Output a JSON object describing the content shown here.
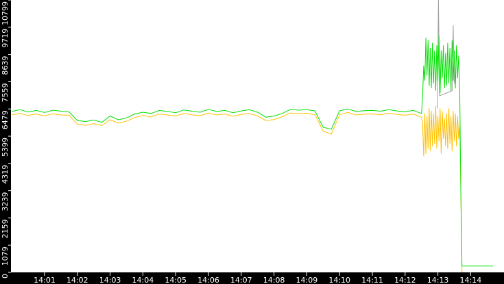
{
  "chart_data": {
    "type": "line",
    "title": "",
    "xlabel": "",
    "ylabel": "",
    "ylim": [
      0,
      10799
    ],
    "xlim": [
      "14:00:00",
      "14:14:41"
    ],
    "grid": false,
    "legend": "none",
    "y_ticks": [
      "0",
      "1079",
      "2159",
      "3239",
      "4319",
      "5399",
      "6479",
      "7559",
      "8639",
      "9719",
      "10799"
    ],
    "x_ticks": [
      "14:01",
      "14:02",
      "14:03",
      "14:04",
      "14:05",
      "14:06",
      "14:07",
      "14:08",
      "14:09",
      "14:10",
      "14:11",
      "14:12",
      "14:13",
      "14:14"
    ],
    "colors": {
      "background": "#ffffff",
      "axis_band": "#000000",
      "axis_text": "#ffffff"
    },
    "series": [
      {
        "color": "#00e000",
        "baseline_interval_s": 15,
        "baseline_start": "14:00:00",
        "baseline_values": [
          6380,
          6450,
          6360,
          6420,
          6340,
          6430,
          6390,
          6360,
          6020,
          5980,
          6040,
          5950,
          6200,
          6050,
          6120,
          6280,
          6350,
          6300,
          6420,
          6380,
          6330,
          6440,
          6390,
          6350,
          6460,
          6380,
          6420,
          6330,
          6400,
          6450,
          6350,
          6150,
          6200,
          6300,
          6460,
          6430,
          6450,
          6400,
          5750,
          5680,
          6400,
          6480,
          6380,
          6410,
          6420,
          6390,
          6450,
          6400,
          6370,
          6420,
          6300
        ],
        "burst_interval_s": 2,
        "burst_start": "14:12:32",
        "burst_values": [
          7000,
          8200,
          7600,
          9300,
          7800,
          9200,
          7400,
          8900,
          7300,
          9100,
          7500,
          8800,
          7200,
          9000,
          7600,
          9400,
          7100,
          8800,
          7700,
          9000,
          7300,
          8700,
          7400,
          9100,
          7500,
          8900,
          7200,
          9200,
          7600,
          8800,
          7300,
          9000,
          7700,
          8600,
          7000
        ],
        "tail": [
          [
            "14:13:42",
            3100
          ],
          [
            "14:13:44",
            250
          ],
          [
            "14:14:41",
            250
          ]
        ]
      },
      {
        "color": "#ffc000",
        "baseline_interval_s": 15,
        "baseline_start": "14:00:00",
        "baseline_values": [
          6250,
          6300,
          6220,
          6280,
          6200,
          6290,
          6240,
          6230,
          5880,
          5830,
          5900,
          5820,
          6050,
          5920,
          5990,
          6140,
          6220,
          6160,
          6280,
          6240,
          6200,
          6300,
          6250,
          6210,
          6320,
          6240,
          6280,
          6190,
          6260,
          6300,
          6200,
          6020,
          6060,
          6170,
          6320,
          6290,
          6310,
          6250,
          5600,
          5480,
          6250,
          6340,
          6240,
          6270,
          6280,
          6250,
          6310,
          6260,
          6230,
          6280,
          6150
        ],
        "burst_interval_s": 2,
        "burst_start": "14:12:32",
        "burst_values": [
          5900,
          4600,
          6300,
          4700,
          6200,
          4900,
          6500,
          4800,
          6400,
          5000,
          6300,
          5100,
          6600,
          4900,
          6200,
          5200,
          6500,
          4700,
          6400,
          5300,
          6100,
          5000,
          6300,
          4900,
          6500,
          5100,
          6200,
          4800,
          6400,
          5200,
          6300,
          5000,
          6200,
          5300,
          5800
        ],
        "tail": [
          [
            "14:13:42",
            3100
          ],
          [
            "14:13:44",
            0
          ]
        ]
      },
      {
        "color": "#a0a0a0",
        "points": [
          [
            "14:12:59",
            6500
          ],
          [
            "14:13:01",
            10799
          ],
          [
            "14:13:03",
            7000
          ],
          [
            "14:13:26",
            7200
          ],
          [
            "14:13:28",
            9800
          ],
          [
            "14:13:30",
            7500
          ]
        ]
      }
    ]
  }
}
